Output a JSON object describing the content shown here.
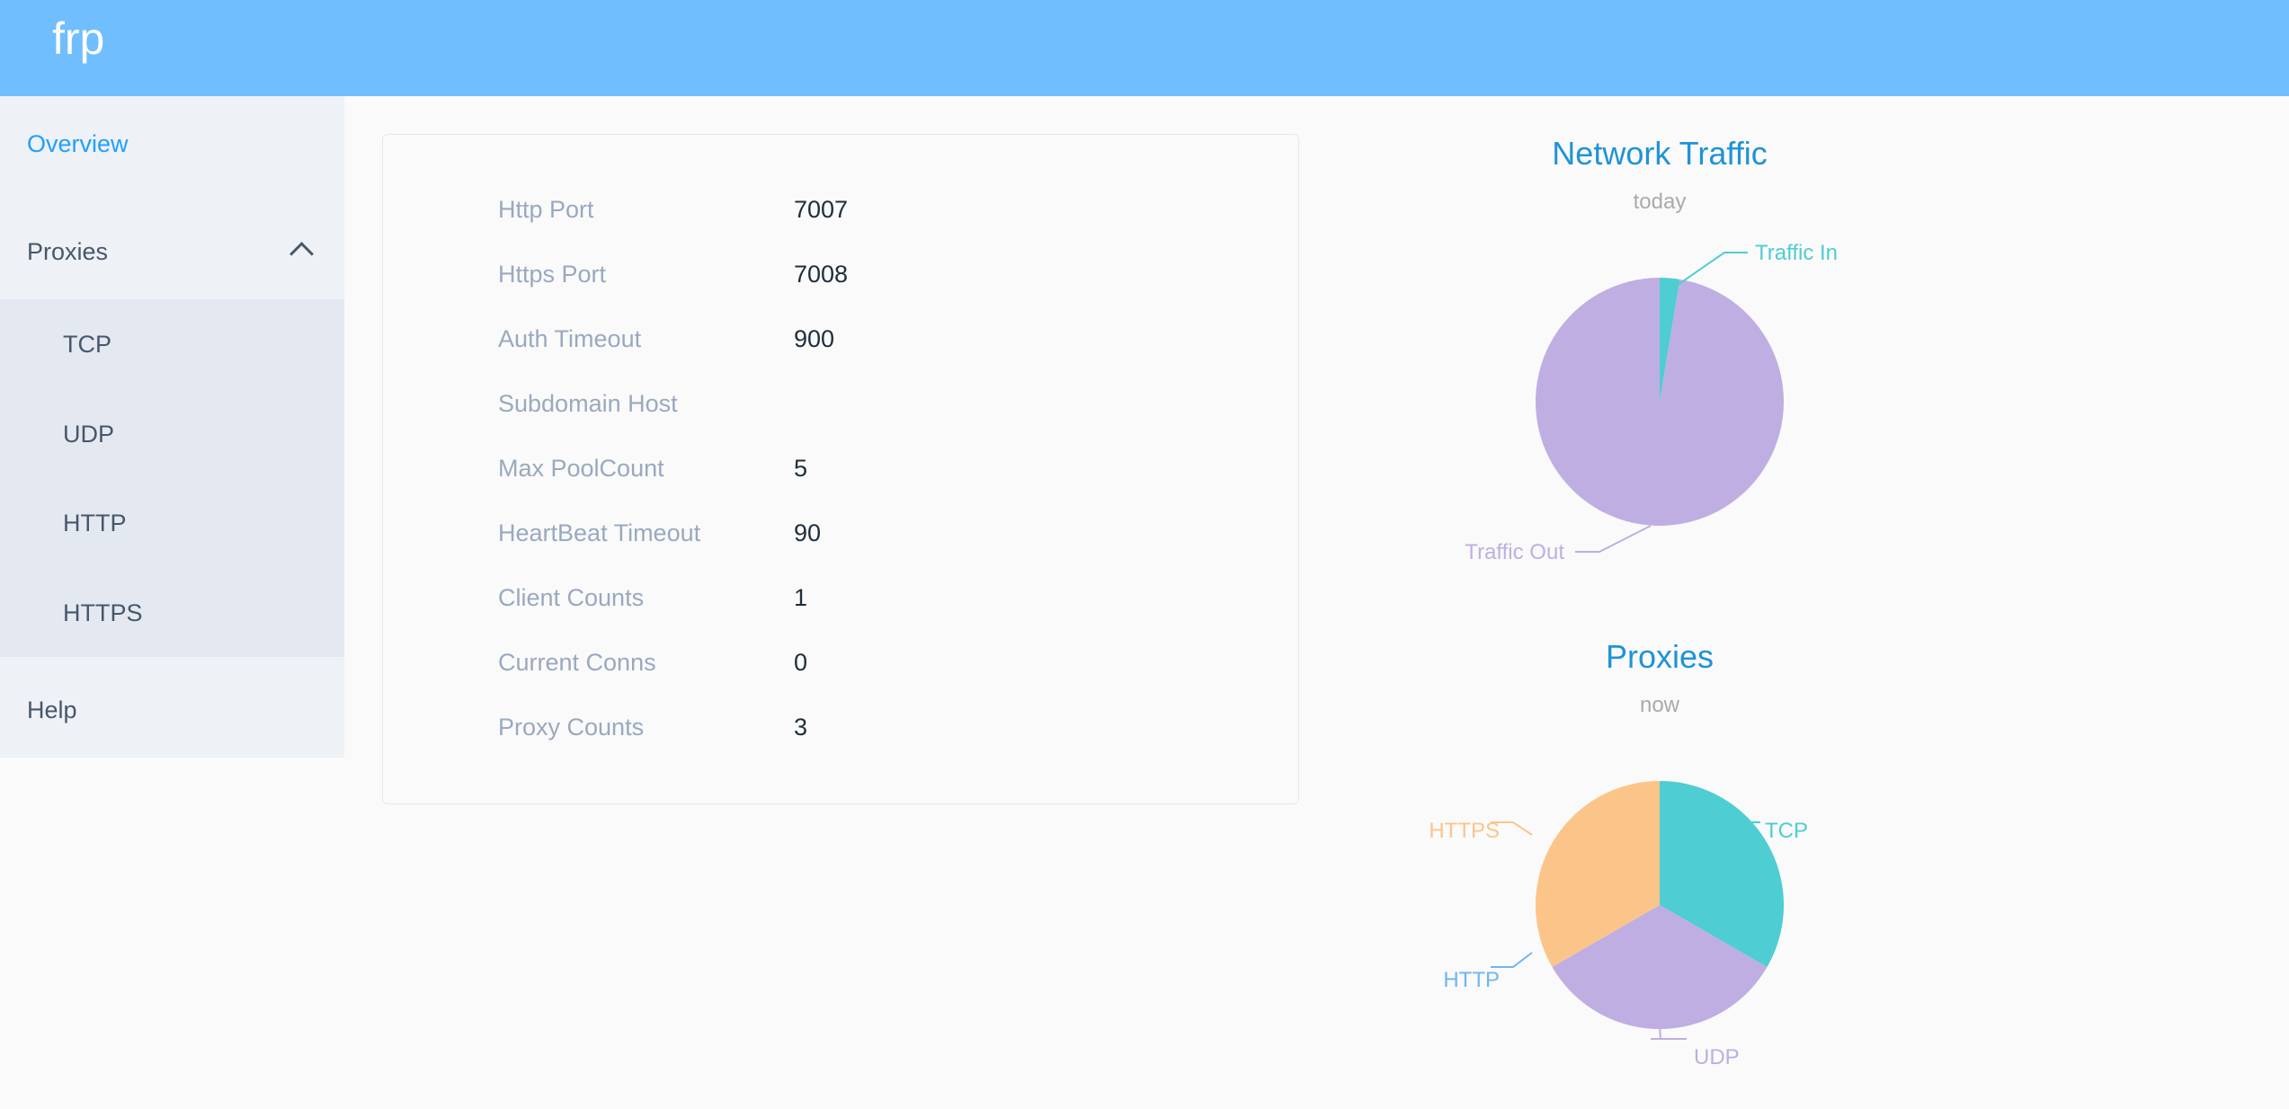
{
  "header": {
    "logo": "frp",
    "color": "#70befe"
  },
  "sidebar": {
    "overview": "Overview",
    "proxies": "Proxies",
    "proxy_types": [
      "TCP",
      "UDP",
      "HTTP",
      "HTTPS"
    ],
    "help": "Help"
  },
  "server_info": [
    {
      "label": "Http Port",
      "value": "7007"
    },
    {
      "label": "Https Port",
      "value": "7008"
    },
    {
      "label": "Auth Timeout",
      "value": "900"
    },
    {
      "label": "Subdomain Host",
      "value": ""
    },
    {
      "label": "Max PoolCount",
      "value": "5"
    },
    {
      "label": "HeartBeat Timeout",
      "value": "90"
    },
    {
      "label": "Client Counts",
      "value": "1"
    },
    {
      "label": "Current Conns",
      "value": "0"
    },
    {
      "label": "Proxy Counts",
      "value": "3"
    }
  ],
  "chart_data": [
    {
      "type": "pie",
      "title": "Network Traffic",
      "subtitle": "today",
      "categories": [
        "Traffic In",
        "Traffic Out"
      ],
      "values": [
        2.6,
        97.4
      ],
      "colors": [
        "#4ecdd2",
        "#bfaee2"
      ]
    },
    {
      "type": "pie",
      "title": "Proxies",
      "subtitle": "now",
      "categories": [
        "TCP",
        "UDP",
        "HTTP",
        "HTTPS"
      ],
      "values": [
        1,
        1,
        0,
        1
      ],
      "colors": [
        "#4ecdd2",
        "#bfaee2",
        "#6eb6f3",
        "#fbc58a"
      ]
    }
  ]
}
